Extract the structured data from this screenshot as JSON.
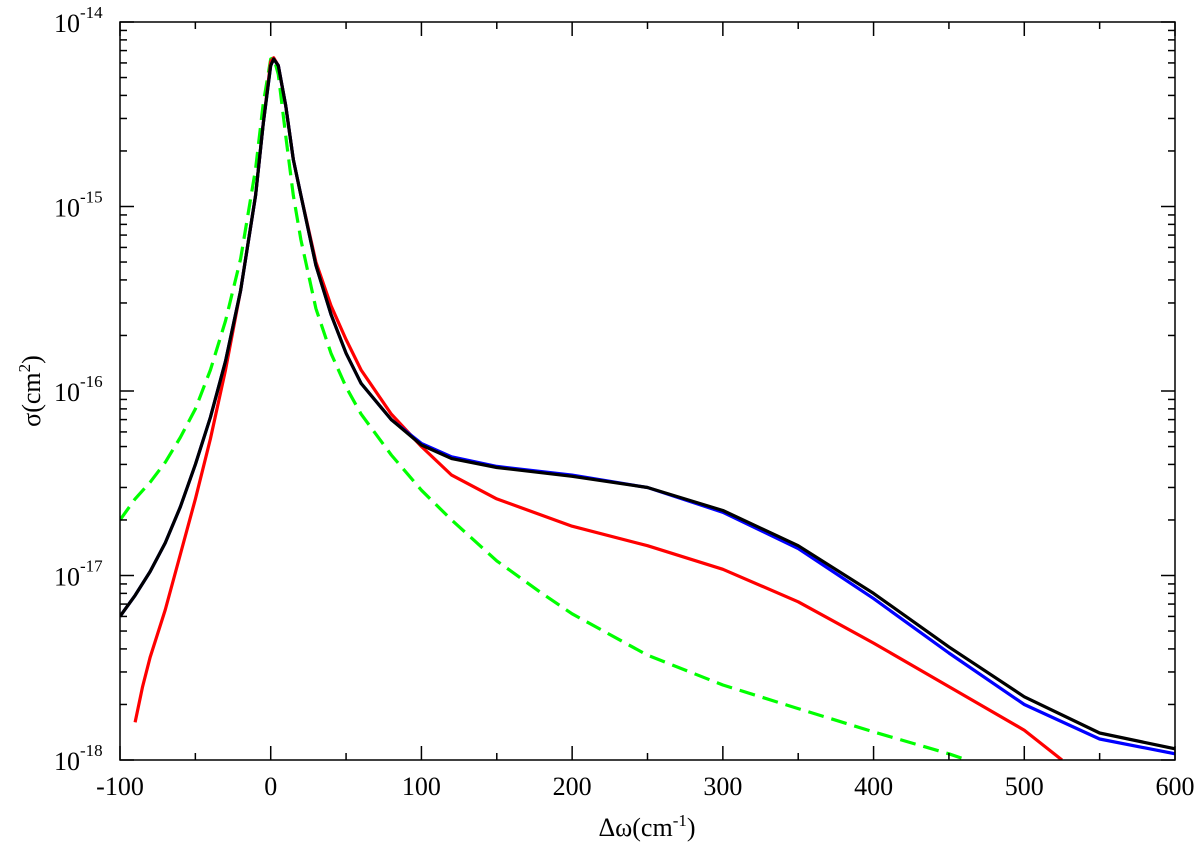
{
  "chart_data": {
    "type": "line",
    "title": "",
    "xlabel": {
      "base": "Δω(cm",
      "sup": "-1",
      "tail": ")"
    },
    "ylabel": {
      "base": "σ(cm",
      "sup": "2",
      "tail": ")"
    },
    "xlim": [
      -100,
      600
    ],
    "ylim": [
      1e-18,
      1e-14
    ],
    "yscale": "log",
    "grid": false,
    "legend": "none",
    "x_ticks": [
      "-100",
      "0",
      "100",
      "200",
      "300",
      "400",
      "500",
      "600"
    ],
    "y_ticks": [
      {
        "value": 1e-18,
        "base": "10",
        "exp": "-18"
      },
      {
        "value": 1e-17,
        "base": "10",
        "exp": "-17"
      },
      {
        "value": 1e-16,
        "base": "10",
        "exp": "-16"
      },
      {
        "value": 1e-15,
        "base": "10",
        "exp": "-15"
      },
      {
        "value": 1e-14,
        "base": "10",
        "exp": "-14"
      }
    ],
    "series": [
      {
        "color": "#00ff00",
        "dash": "dashed",
        "x": [
          -100,
          -90,
          -80,
          -70,
          -60,
          -50,
          -40,
          -30,
          -20,
          -10,
          -5,
          0,
          2,
          5,
          10,
          15,
          20,
          30,
          40,
          50,
          60,
          80,
          100,
          120,
          150,
          180,
          200,
          250,
          300,
          350,
          400,
          450,
          462
        ],
        "y": [
          2e-17,
          2.6e-17,
          3.2e-17,
          4.1e-17,
          5.6e-17,
          8e-17,
          1.3e-16,
          2.4e-16,
          5.2e-16,
          1.6e-15,
          3.6e-15,
          6.3e-15,
          6.4e-15,
          5.2e-15,
          2.4e-15,
          1.15e-15,
          6.6e-16,
          2.8e-16,
          1.6e-16,
          1.05e-16,
          7.5e-17,
          4.5e-17,
          2.9e-17,
          2e-17,
          1.2e-17,
          8e-18,
          6.2e-18,
          3.7e-18,
          2.55e-18,
          1.9e-18,
          1.42e-18,
          1.08e-18,
          1e-18
        ]
      },
      {
        "color": "#ff0000",
        "dash": "solid",
        "x": [
          -90,
          -85,
          -80,
          -70,
          -60,
          -50,
          -40,
          -30,
          -20,
          -10,
          -5,
          0,
          2,
          5,
          10,
          15,
          20,
          30,
          40,
          50,
          60,
          80,
          100,
          120,
          150,
          200,
          250,
          300,
          350,
          400,
          450,
          500,
          525
        ],
        "y": [
          1.6e-18,
          2.5e-18,
          3.6e-18,
          6.5e-18,
          1.3e-17,
          2.6e-17,
          5.5e-17,
          1.3e-16,
          3.5e-16,
          1.15e-15,
          2.8e-15,
          6.1e-15,
          6.4e-15,
          5.8e-15,
          3.5e-15,
          1.8e-15,
          1.15e-15,
          5e-16,
          2.9e-16,
          1.9e-16,
          1.3e-16,
          7.5e-17,
          5e-17,
          3.5e-17,
          2.6e-17,
          1.85e-17,
          1.45e-17,
          1.08e-17,
          7.2e-18,
          4.3e-18,
          2.5e-18,
          1.45e-18,
          1e-18
        ]
      },
      {
        "color": "#0000ff",
        "dash": "solid",
        "x": [
          -100,
          -90,
          -80,
          -70,
          -60,
          -50,
          -40,
          -30,
          -20,
          -10,
          -5,
          0,
          2,
          5,
          10,
          15,
          20,
          30,
          40,
          50,
          60,
          80,
          100,
          120,
          150,
          200,
          250,
          300,
          350,
          400,
          450,
          500,
          550,
          600
        ],
        "y": [
          6e-18,
          7.8e-18,
          1.05e-17,
          1.5e-17,
          2.35e-17,
          4e-17,
          7.2e-17,
          1.45e-16,
          3.5e-16,
          1.15e-15,
          2.8e-15,
          5.8e-15,
          6.3e-15,
          5.8e-15,
          3.5e-15,
          1.8e-15,
          1.15e-15,
          4.8e-16,
          2.6e-16,
          1.6e-16,
          1.1e-16,
          7e-17,
          5.2e-17,
          4.4e-17,
          3.9e-17,
          3.5e-17,
          3e-17,
          2.2e-17,
          1.4e-17,
          7.5e-18,
          3.8e-18,
          2e-18,
          1.3e-18,
          1.08e-18
        ]
      },
      {
        "color": "#000000",
        "dash": "solid",
        "x": [
          -100,
          -90,
          -80,
          -70,
          -60,
          -50,
          -40,
          -30,
          -20,
          -10,
          -5,
          0,
          2,
          5,
          10,
          15,
          20,
          30,
          40,
          50,
          60,
          80,
          100,
          120,
          150,
          200,
          250,
          300,
          350,
          400,
          450,
          500,
          550,
          600
        ],
        "y": [
          6e-18,
          7.8e-18,
          1.05e-17,
          1.5e-17,
          2.35e-17,
          4e-17,
          7.2e-17,
          1.45e-16,
          3.5e-16,
          1.15e-15,
          2.8e-15,
          5.8e-15,
          6.3e-15,
          5.8e-15,
          3.5e-15,
          1.8e-15,
          1.15e-15,
          4.8e-16,
          2.6e-16,
          1.6e-16,
          1.1e-16,
          7e-17,
          5.1e-17,
          4.3e-17,
          3.85e-17,
          3.45e-17,
          3e-17,
          2.25e-17,
          1.45e-17,
          8e-18,
          4.1e-18,
          2.2e-18,
          1.4e-18,
          1.15e-18
        ]
      }
    ]
  }
}
